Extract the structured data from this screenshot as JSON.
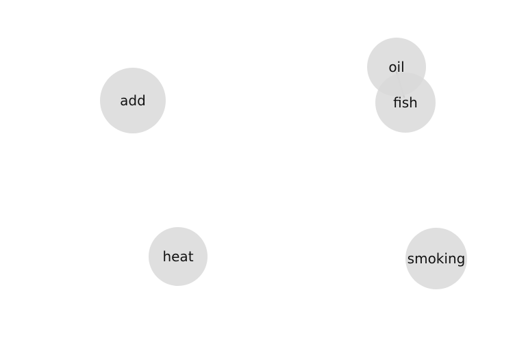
{
  "diagram": {
    "nodes": [
      {
        "id": "add",
        "label": "add"
      },
      {
        "id": "oil",
        "label": "oil"
      },
      {
        "id": "fish",
        "label": "fish"
      },
      {
        "id": "heat",
        "label": "heat"
      },
      {
        "id": "smoking",
        "label": "smoking"
      }
    ],
    "edges": [
      {
        "source": "oil",
        "target": "fish"
      }
    ],
    "colors": {
      "node_fill": "#d9d9d9",
      "edge": "#8a8a8a",
      "background": "#ffffff"
    }
  }
}
